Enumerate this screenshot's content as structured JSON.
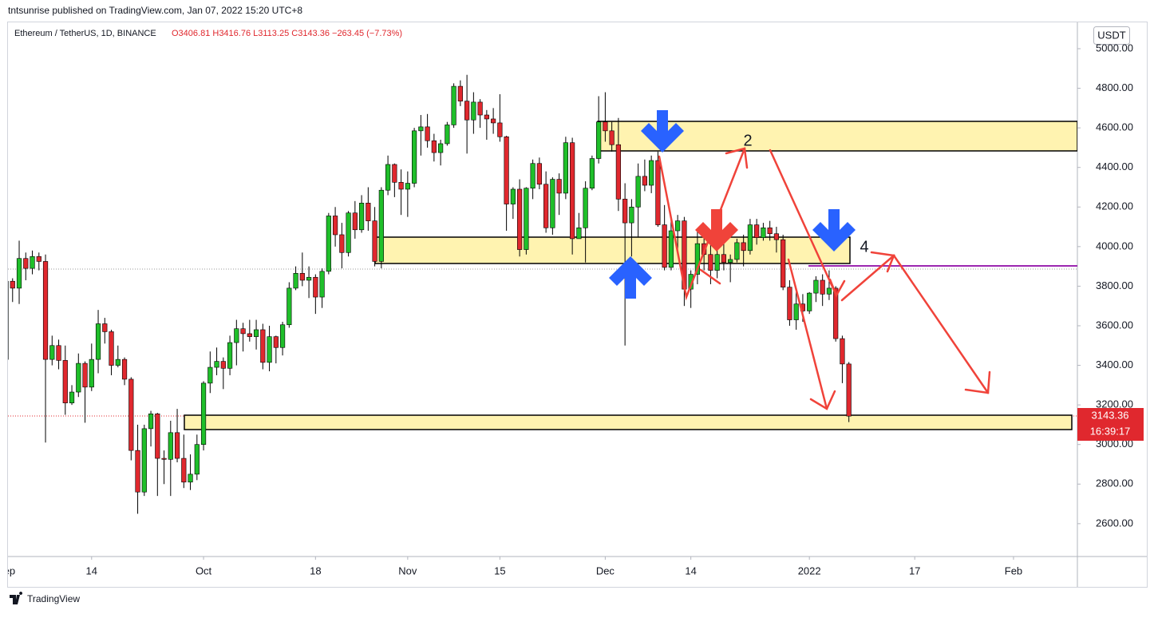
{
  "header": {
    "published": "tntsunrise published on TradingView.com, Jan 07, 2022 15:20 UTC+8",
    "footer": "TradingView"
  },
  "chart_data": {
    "type": "candlestick",
    "symbol": "Ethereum / TetherUS, 1D, BINANCE",
    "ohlc_text": "O3406.81 H3416.76 L3113.25 C3143.36 −263.45 (−7.73%)",
    "currency": "USDT",
    "countdown": "16:39:17",
    "annotations": [
      "2",
      "4"
    ],
    "up_color": "#1fbf2a",
    "down_color": "#e0282e",
    "grid": false,
    "x": [
      0,
      1,
      2,
      3,
      4,
      5,
      6,
      7,
      8,
      9,
      10,
      11,
      12,
      13,
      14,
      15,
      16,
      17,
      18,
      19,
      20,
      21,
      22,
      23,
      24,
      25,
      26,
      27,
      28,
      29,
      30,
      31,
      32,
      33,
      34,
      35,
      36,
      37,
      38,
      39,
      40,
      41,
      42,
      43,
      44,
      45,
      46,
      47,
      48,
      49,
      50,
      51,
      52,
      53,
      54,
      55,
      56,
      57,
      58,
      59,
      60,
      61,
      62,
      63,
      64,
      65,
      66,
      67,
      68,
      69,
      70,
      71,
      72,
      73,
      74,
      75,
      76,
      77,
      78,
      79,
      80,
      81,
      82,
      83,
      84,
      85,
      86,
      87,
      88,
      89,
      90,
      91,
      92,
      93,
      94,
      95,
      96,
      97,
      98,
      99,
      100,
      101,
      102,
      103,
      104,
      105,
      106,
      107,
      108,
      109,
      110,
      111,
      112,
      113,
      114,
      115,
      116,
      117,
      118,
      119,
      120,
      121,
      122,
      123,
      124,
      125,
      126,
      127,
      128
    ],
    "open": [
      3430,
      3825,
      3790,
      3940,
      3890,
      3950,
      3925,
      3430,
      3500,
      3425,
      3210,
      3265,
      3410,
      3290,
      3430,
      3610,
      3570,
      3400,
      3430,
      3330,
      2970,
      2760,
      3080,
      3155,
      2930,
      2925,
      3060,
      2930,
      2810,
      2850,
      3000,
      3310,
      3390,
      3420,
      3385,
      3515,
      3585,
      3560,
      3545,
      3580,
      3415,
      3545,
      3490,
      3605,
      3790,
      3865,
      3830,
      3845,
      3745,
      3875,
      4155,
      4060,
      3970,
      4170,
      4085,
      4220,
      4130,
      3925,
      4285,
      4415,
      4325,
      4290,
      4320,
      4585,
      4605,
      4535,
      4475,
      4520,
      4615,
      4810,
      4735,
      4640,
      4730,
      4665,
      4645,
      4625,
      4555,
      4215,
      4290,
      3985,
      4295,
      4420,
      4315,
      4095,
      4340,
      4270,
      4525,
      4040,
      4095,
      4295,
      4445,
      4630,
      4585,
      4515,
      4240,
      4120,
      4200,
      4355,
      4310,
      4435,
      4110,
      3895,
      4080,
      4130,
      3785,
      3860,
      4015,
      3960,
      3880,
      3960,
      3920,
      3935,
      4020,
      3980,
      4110,
      4045,
      4095,
      4065,
      4035,
      3795,
      3630,
      3710,
      3675,
      3765,
      3830,
      3760,
      3790,
      3535,
      3406.81
    ],
    "high": [
      3840,
      3840,
      4030,
      3970,
      3980,
      3970,
      3960,
      3550,
      3530,
      3500,
      3300,
      3460,
      3420,
      3510,
      3680,
      3640,
      3580,
      3500,
      3440,
      3340,
      3100,
      3100,
      3170,
      3160,
      2970,
      3120,
      3180,
      3050,
      2950,
      3050,
      3320,
      3470,
      3490,
      3440,
      3550,
      3630,
      3615,
      3630,
      3630,
      3610,
      3600,
      3550,
      3620,
      3820,
      3900,
      3970,
      3900,
      3860,
      3890,
      4170,
      4200,
      4120,
      4180,
      4230,
      4260,
      4300,
      4200,
      4300,
      4460,
      4420,
      4390,
      4380,
      4600,
      4665,
      4670,
      4570,
      4540,
      4630,
      4825,
      4840,
      4868,
      4780,
      4745,
      4690,
      4700,
      4770,
      4560,
      4300,
      4340,
      4300,
      4440,
      4450,
      4380,
      4350,
      4370,
      4555,
      4550,
      4170,
      4330,
      4460,
      4760,
      4780,
      4630,
      4650,
      4320,
      4240,
      4420,
      4440,
      4460,
      4480,
      4210,
      4140,
      4160,
      4150,
      3880,
      4090,
      4110,
      4010,
      3990,
      4040,
      3960,
      4040,
      4060,
      4140,
      4140,
      4120,
      4130,
      4100,
      4060,
      3830,
      3770,
      3760,
      3770,
      3850,
      3860,
      3880,
      3800,
      3550,
      3416.76
    ],
    "low": [
      3390,
      3720,
      3710,
      3830,
      3860,
      3880,
      3010,
      3400,
      3380,
      3150,
      3200,
      3240,
      3110,
      3270,
      3360,
      3510,
      3350,
      3390,
      3300,
      2920,
      2650,
      2740,
      2990,
      2740,
      2800,
      2740,
      2910,
      2780,
      2770,
      2820,
      2970,
      3260,
      3350,
      3280,
      3350,
      3400,
      3470,
      3520,
      3480,
      3380,
      3370,
      3410,
      3450,
      3590,
      3780,
      3800,
      3740,
      3660,
      3690,
      3860,
      4000,
      3890,
      3950,
      4040,
      4070,
      4080,
      3900,
      3890,
      4260,
      4250,
      4160,
      4150,
      4300,
      4460,
      4500,
      4430,
      4410,
      4510,
      4600,
      4710,
      4470,
      4570,
      4600,
      4540,
      4570,
      4530,
      4080,
      4140,
      3950,
      3960,
      4240,
      4290,
      4070,
      4060,
      4160,
      4240,
      3960,
      4040,
      3920,
      4285,
      4420,
      4530,
      4480,
      4180,
      3500,
      3950,
      4050,
      4280,
      4270,
      4100,
      3880,
      3880,
      3970,
      3700,
      3690,
      3810,
      3880,
      3810,
      3840,
      3880,
      3820,
      3920,
      3900,
      3960,
      4010,
      4030,
      4030,
      3970,
      3780,
      3600,
      3580,
      3620,
      3660,
      3720,
      3700,
      3730,
      3520,
      3310,
      3113.25
    ],
    "close": [
      3825,
      3790,
      3940,
      3890,
      3950,
      3925,
      3430,
      3500,
      3425,
      3210,
      3265,
      3410,
      3290,
      3430,
      3610,
      3570,
      3400,
      3430,
      3330,
      2970,
      2760,
      3080,
      3155,
      2930,
      2925,
      3060,
      2930,
      2810,
      2850,
      3000,
      3310,
      3390,
      3420,
      3385,
      3515,
      3585,
      3560,
      3545,
      3580,
      3415,
      3545,
      3490,
      3605,
      3790,
      3865,
      3830,
      3845,
      3745,
      3875,
      4155,
      4060,
      3970,
      4170,
      4085,
      4220,
      4130,
      3925,
      4285,
      4415,
      4325,
      4290,
      4320,
      4585,
      4605,
      4535,
      4475,
      4520,
      4615,
      4810,
      4735,
      4640,
      4730,
      4665,
      4645,
      4625,
      4555,
      4215,
      4290,
      3985,
      4295,
      4420,
      4315,
      4095,
      4340,
      4270,
      4525,
      4040,
      4095,
      4295,
      4445,
      4630,
      4585,
      4515,
      4240,
      4120,
      4200,
      4355,
      4310,
      4435,
      4110,
      3895,
      4080,
      4130,
      3785,
      3860,
      4015,
      3960,
      3880,
      3960,
      3920,
      3935,
      4020,
      3980,
      4110,
      4045,
      4095,
      4065,
      4035,
      3795,
      3630,
      3710,
      3675,
      3765,
      3830,
      3760,
      3790,
      3535,
      3406.81,
      3143.36
    ],
    "xlim": [
      0.3,
      162.7
    ],
    "xticks": [
      {
        "value": 0,
        "label": "Sep"
      },
      {
        "value": 13,
        "label": "14"
      },
      {
        "value": 30,
        "label": "Oct"
      },
      {
        "value": 47,
        "label": "18"
      },
      {
        "value": 61,
        "label": "Nov"
      },
      {
        "value": 75,
        "label": "15"
      },
      {
        "value": 91,
        "label": "Dec"
      },
      {
        "value": 104,
        "label": "14"
      },
      {
        "value": 122,
        "label": "2022"
      },
      {
        "value": 138,
        "label": "17"
      },
      {
        "value": 153,
        "label": "Feb"
      }
    ],
    "ylim": [
      2434,
      5125
    ],
    "yticks": [
      {
        "value": 2600,
        "label": "2600.00"
      },
      {
        "value": 2800,
        "label": "2800.00"
      },
      {
        "value": 3000,
        "label": "3000.00"
      },
      {
        "value": 3200,
        "label": "3200.00"
      },
      {
        "value": 3400,
        "label": "3400.00"
      },
      {
        "value": 3600,
        "label": "3600.00"
      },
      {
        "value": 3800,
        "label": "3800.00"
      },
      {
        "value": 4000,
        "label": "4000.00"
      },
      {
        "value": 4200,
        "label": "4200.00"
      },
      {
        "value": 4400,
        "label": "4400.00"
      },
      {
        "value": 4600,
        "label": "4600.00"
      },
      {
        "value": 4800,
        "label": "4800.00"
      },
      {
        "value": 5000,
        "label": "5000.00"
      }
    ]
  }
}
